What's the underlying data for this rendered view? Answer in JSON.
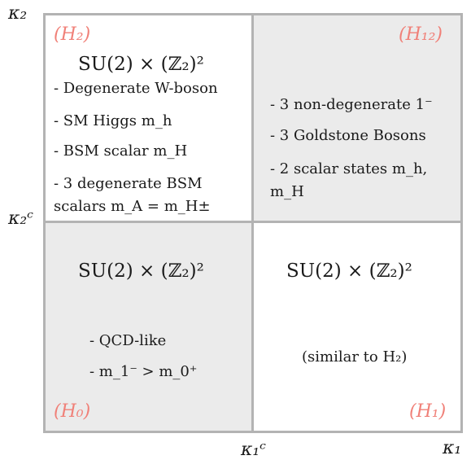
{
  "diagram": {
    "axes": {
      "y_label": "κ₂",
      "x_label": "κ₁",
      "y_critical": "κ₂ᶜ",
      "x_critical": "κ₁ᶜ"
    },
    "quadrants": {
      "top_left": {
        "phase": "(H₂)",
        "symmetry": "SU(2) × (ℤ₂)²",
        "items": [
          "- Degenerate W-boson",
          "- SM Higgs m_h",
          "- BSM scalar m_H",
          "- 3 degenerate BSM scalars m_A = m_H±"
        ],
        "shaded": false
      },
      "top_right": {
        "phase": "(H₁₂)",
        "items": [
          "- 3 non-degenerate 1⁻",
          "- 3 Goldstone Bosons",
          "- 2 scalar states m_h, m_H"
        ],
        "shaded": true
      },
      "bottom_left": {
        "phase": "(H₀)",
        "symmetry": "SU(2) × (ℤ₂)²",
        "items": [
          "- QCD-like",
          "- m_1⁻ > m_0⁺"
        ],
        "shaded": true
      },
      "bottom_right": {
        "phase": "(H₁)",
        "symmetry": "SU(2) × (ℤ₂)²",
        "note": "(similar to H₂)",
        "shaded": false
      }
    },
    "colors": {
      "phase_label": "#f08078",
      "shade": "#ebebeb",
      "grid": "#b3b3b3"
    }
  }
}
